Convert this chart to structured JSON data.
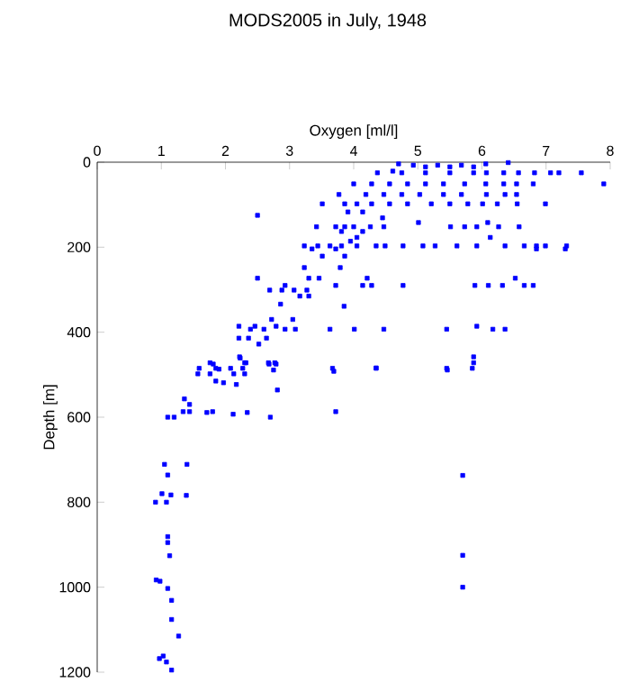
{
  "chart_data": {
    "type": "scatter",
    "title": "MODS2005 in July, 1948",
    "xlabel": "Oxygen [ml/l]",
    "ylabel": "Depth [m]",
    "xlim": [
      0,
      8
    ],
    "xticks": [
      0,
      1,
      2,
      3,
      4,
      5,
      6,
      7,
      8
    ],
    "ylim": [
      1200,
      0
    ],
    "yticks": [
      0,
      200,
      400,
      600,
      800,
      1000,
      1200
    ],
    "marker": "square",
    "series": [
      {
        "color": "#0000ff",
        "x": [
          4.7,
          4.93,
          5.12,
          5.31,
          5.5,
          5.68,
          5.87,
          6.06,
          6.41,
          4.61,
          4.37,
          4.75,
          5.12,
          5.5,
          5.87,
          6.07,
          6.34,
          6.57,
          6.82,
          7.07,
          7.2,
          7.55,
          4.0,
          4.28,
          4.56,
          4.84,
          5.12,
          5.4,
          5.73,
          6.06,
          6.34,
          6.54,
          6.8,
          7.9,
          3.77,
          4.19,
          4.47,
          4.75,
          5.03,
          5.4,
          5.68,
          6.07,
          6.36,
          6.54,
          3.51,
          3.86,
          4.05,
          4.28,
          4.56,
          4.84,
          5.21,
          5.5,
          5.78,
          6.01,
          6.24,
          6.55,
          6.99,
          4.14,
          3.91,
          2.5,
          4.45,
          5.01,
          6.09,
          3.42,
          3.72,
          3.86,
          4.0,
          4.26,
          4.47,
          5.51,
          5.73,
          5.92,
          6.26,
          6.58,
          3.81,
          4.14,
          4.05,
          6.13,
          3.95,
          3.23,
          3.44,
          3.63,
          3.81,
          4.05,
          4.35,
          4.49,
          4.77,
          5.08,
          5.27,
          5.61,
          5.92,
          6.36,
          6.66,
          6.85,
          6.99,
          7.32,
          3.35,
          3.72,
          6.85,
          7.3,
          3.51,
          3.86,
          3.23,
          3.79,
          2.5,
          3.3,
          3.46,
          4.21,
          6.52,
          2.93,
          3.72,
          4.28,
          6.8,
          6.66,
          6.32,
          6.1,
          5.89,
          4.77,
          4.14,
          2.69,
          2.88,
          3.07,
          3.27,
          3.16,
          3.3,
          2.86,
          3.85,
          2.72,
          3.05,
          2.21,
          2.46,
          2.79,
          5.92,
          2.39,
          2.6,
          2.93,
          3.09,
          3.63,
          4.01,
          4.47,
          5.45,
          6.17,
          6.36,
          2.21,
          2.36,
          2.64,
          2.52,
          2.22,
          5.87,
          1.76,
          2.3,
          2.67,
          2.77,
          5.87,
          1.59,
          1.85,
          2.08,
          2.27,
          3.67,
          4.35,
          5.45,
          5.85,
          1.81,
          2.23,
          2.68,
          2.79,
          2.32,
          1.57,
          1.76,
          1.9,
          2.13,
          2.3,
          2.75,
          3.69,
          4.35,
          5.46,
          1.85,
          1.97,
          2.17,
          2.81,
          1.36,
          1.44,
          1.34,
          1.44,
          1.71,
          1.8,
          2.12,
          2.34,
          2.7,
          3.72,
          1.1,
          1.2,
          1.05,
          1.4,
          1.1,
          1.01,
          1.15,
          1.39,
          0.91,
          1.08,
          1.1,
          1.1,
          1.13,
          0.92,
          0.98,
          1.1,
          1.16,
          1.16,
          1.27,
          1.03,
          0.97,
          1.08,
          1.16,
          5.7,
          5.7,
          5.7
        ],
        "values": [
          4,
          7,
          11,
          7,
          11,
          7,
          11,
          4,
          1,
          21,
          25,
          25,
          25,
          25,
          25,
          25,
          25,
          25,
          25,
          25,
          25,
          25,
          51,
          51,
          51,
          51,
          51,
          51,
          51,
          51,
          51,
          51,
          51,
          51,
          76,
          76,
          76,
          76,
          76,
          76,
          76,
          76,
          76,
          76,
          98,
          98,
          98,
          98,
          98,
          98,
          98,
          98,
          98,
          98,
          98,
          98,
          98,
          117,
          117,
          125,
          131,
          142,
          142,
          152,
          152,
          152,
          152,
          152,
          152,
          152,
          152,
          152,
          152,
          152,
          163,
          163,
          177,
          177,
          186,
          197,
          197,
          197,
          197,
          197,
          197,
          197,
          197,
          197,
          197,
          197,
          197,
          197,
          197,
          197,
          197,
          197,
          204,
          204,
          204,
          204,
          221,
          221,
          248,
          248,
          273,
          273,
          273,
          273,
          273,
          290,
          290,
          290,
          290,
          290,
          290,
          290,
          290,
          290,
          290,
          301,
          301,
          301,
          301,
          315,
          315,
          334,
          339,
          370,
          370,
          386,
          386,
          386,
          386,
          393,
          393,
          393,
          393,
          393,
          393,
          393,
          393,
          393,
          393,
          414,
          414,
          414,
          428,
          458,
          458,
          472,
          472,
          472,
          472,
          472,
          485,
          485,
          485,
          485,
          485,
          485,
          485,
          485,
          475,
          461,
          475,
          475,
          472,
          498,
          498,
          487,
          498,
          498,
          489,
          492,
          484,
          489,
          515,
          519,
          523,
          536,
          557,
          570,
          587,
          587,
          589,
          587,
          593,
          589,
          600,
          587,
          600,
          600,
          711,
          711,
          736,
          780,
          783,
          784,
          800,
          800,
          881,
          895,
          926,
          983,
          986,
          1003,
          1031,
          1076,
          1115,
          1162,
          1168,
          1176,
          1195,
          737,
          925,
          1000
        ]
      }
    ]
  }
}
